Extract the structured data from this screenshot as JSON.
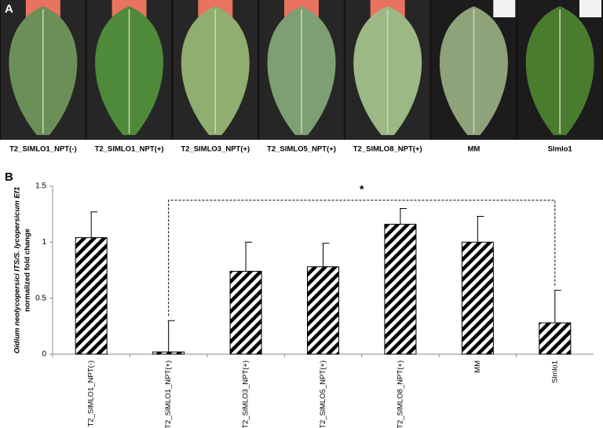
{
  "panel_a": {
    "label": "A",
    "captions": [
      "T2_SlMLO1_NPT(-)",
      "T2_SlMLO1_NPT(+)",
      "T2_SlMLO3_NPT(+)",
      "T2_SlMLO5_NPT(+)",
      "T2_SlMLO8_NPT(+)",
      "MM",
      "Slmlo1"
    ]
  },
  "chart_data": {
    "type": "bar",
    "panel_label": "B",
    "ylabel": [
      "Oidium neolycopersici ITS/S. lycopersicum Ef1",
      "normalized fold change"
    ],
    "categories": [
      "T2_SlMLO1_NPT(-)",
      "T2_SlMLO1_NPT(+)",
      "T2_SlMLO3_NPT(+)",
      "T2_SlMLO5_NPT(+)",
      "T2_SlMLO8_NPT(+)",
      "MM",
      "Slmlo1"
    ],
    "values": [
      1.04,
      0.02,
      0.74,
      0.78,
      1.16,
      1.0,
      0.28
    ],
    "errors": [
      0.23,
      0.28,
      0.26,
      0.21,
      0.14,
      0.23,
      0.29
    ],
    "color": "#000000",
    "ylim": [
      0,
      1.5
    ],
    "yticks": [
      0,
      0.5,
      1,
      1.5
    ],
    "annotation": "*"
  }
}
